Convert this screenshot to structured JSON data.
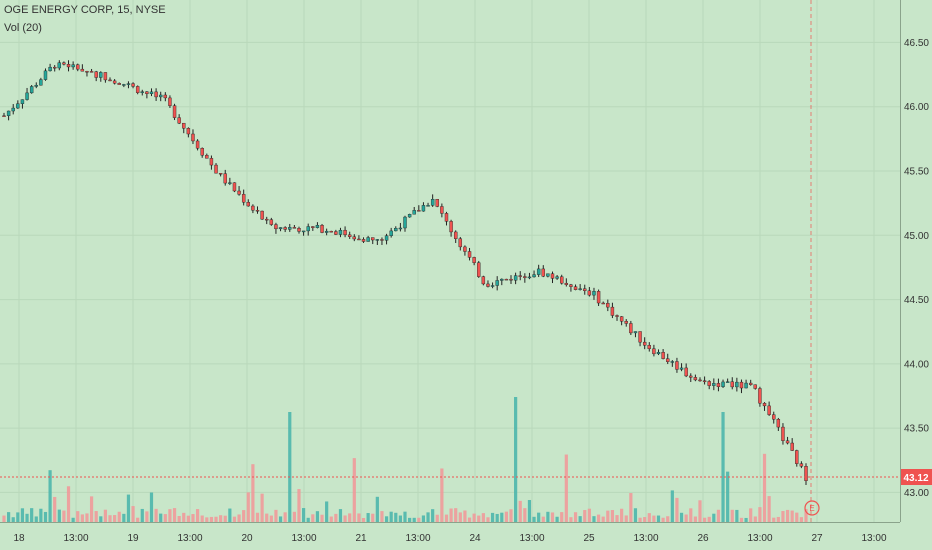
{
  "header": {
    "symbol_line": "OGE ENERGY CORP, 15, NYSE",
    "volume_label": "Vol (20)"
  },
  "colors": {
    "background": "#c8e6c9",
    "up": "#26a69a",
    "down": "#ef5350",
    "up_volume": "#4db6ac",
    "down_volume": "#ef9a9a",
    "price_line": "#ef5350",
    "grid": "#b9d8ba"
  },
  "chart_data": {
    "type": "candlestick",
    "title": "OGE ENERGY CORP, 15, NYSE",
    "price_axis": {
      "ticks": [
        "46.50",
        "46.00",
        "45.50",
        "45.00",
        "44.50",
        "44.00",
        "43.50",
        "43.00"
      ],
      "ylim": [
        42.77,
        46.83
      ]
    },
    "time_axis": {
      "ticks": [
        "18",
        "13:00",
        "19",
        "13:00",
        "20",
        "13:00",
        "21",
        "13:00",
        "24",
        "13:00",
        "25",
        "13:00",
        "26",
        "13:00",
        "27",
        "13:00"
      ]
    },
    "last_price": "43.12",
    "indicator": "Vol (20)",
    "event_marker": "E",
    "grid": true,
    "ohlc_trend": [
      {
        "x": "18 open",
        "price": 45.93
      },
      {
        "x": "18 late",
        "price": 46.35
      },
      {
        "x": "18 13:00",
        "price": 46.22
      },
      {
        "x": "19",
        "price": 46.05
      },
      {
        "x": "19 afternoon",
        "price": 45.48
      },
      {
        "x": "20",
        "price": 45.06
      },
      {
        "x": "20 13:00",
        "price": 45.05
      },
      {
        "x": "21",
        "price": 44.95
      },
      {
        "x": "21 13:00",
        "price": 45.28
      },
      {
        "x": "24 open",
        "price": 44.62
      },
      {
        "x": "24 13:00",
        "price": 44.72
      },
      {
        "x": "25",
        "price": 44.55
      },
      {
        "x": "25 13:00",
        "price": 44.15
      },
      {
        "x": "26",
        "price": 43.86
      },
      {
        "x": "26 13:00",
        "price": 43.82
      },
      {
        "x": "27",
        "price": 43.12
      }
    ]
  }
}
